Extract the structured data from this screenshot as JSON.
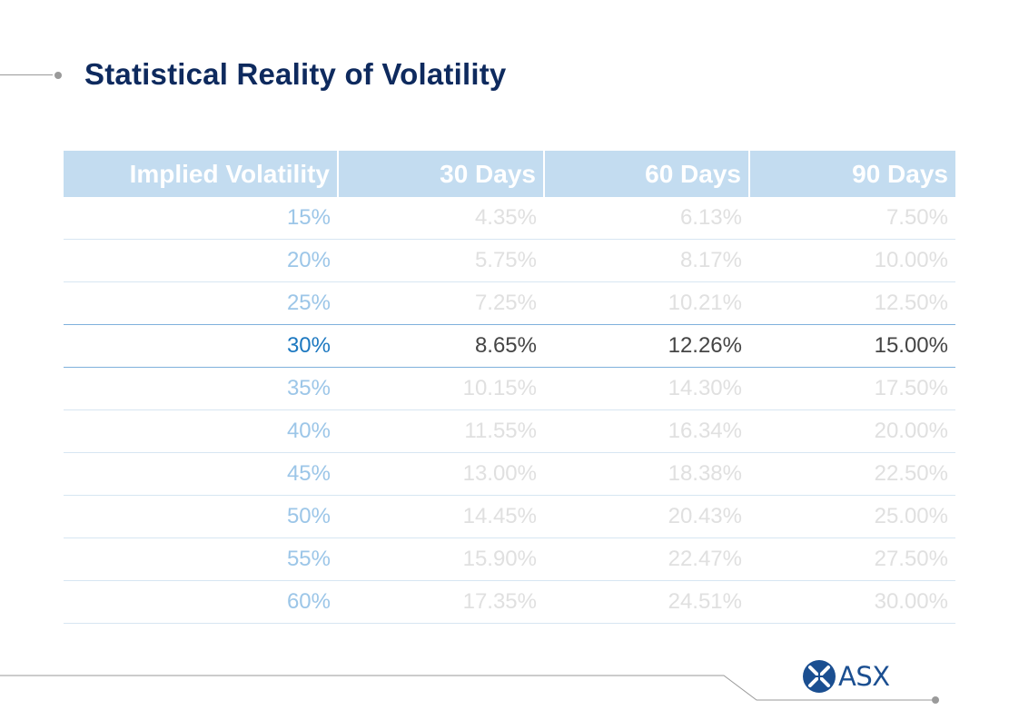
{
  "slide": {
    "title": "Statistical Reality of Volatility"
  },
  "table": {
    "headers": [
      "Implied Volatility",
      "30 Days",
      "60 Days",
      "90 Days"
    ],
    "highlighted_row_index": 3,
    "rows": [
      [
        "15%",
        "4.35%",
        "6.13%",
        "7.50%"
      ],
      [
        "20%",
        "5.75%",
        "8.17%",
        "10.00%"
      ],
      [
        "25%",
        "7.25%",
        "10.21%",
        "12.50%"
      ],
      [
        "30%",
        "8.65%",
        "12.26%",
        "15.00%"
      ],
      [
        "35%",
        "10.15%",
        "14.30%",
        "17.50%"
      ],
      [
        "40%",
        "11.55%",
        "16.34%",
        "20.00%"
      ],
      [
        "45%",
        "13.00%",
        "18.38%",
        "22.50%"
      ],
      [
        "50%",
        "14.45%",
        "20.43%",
        "25.00%"
      ],
      [
        "55%",
        "15.90%",
        "22.47%",
        "27.50%"
      ],
      [
        "60%",
        "17.35%",
        "24.51%",
        "30.00%"
      ]
    ]
  },
  "logo": {
    "text": "ASX",
    "icon": "asx-logo-icon",
    "color": "#1b4f91"
  },
  "colors": {
    "title": "#0e2a5e",
    "header_bg": "#c3dcf0",
    "highlight_iv": "#1c78c0",
    "highlight_text": "#454545",
    "faded_text": "#e0e0e0"
  }
}
